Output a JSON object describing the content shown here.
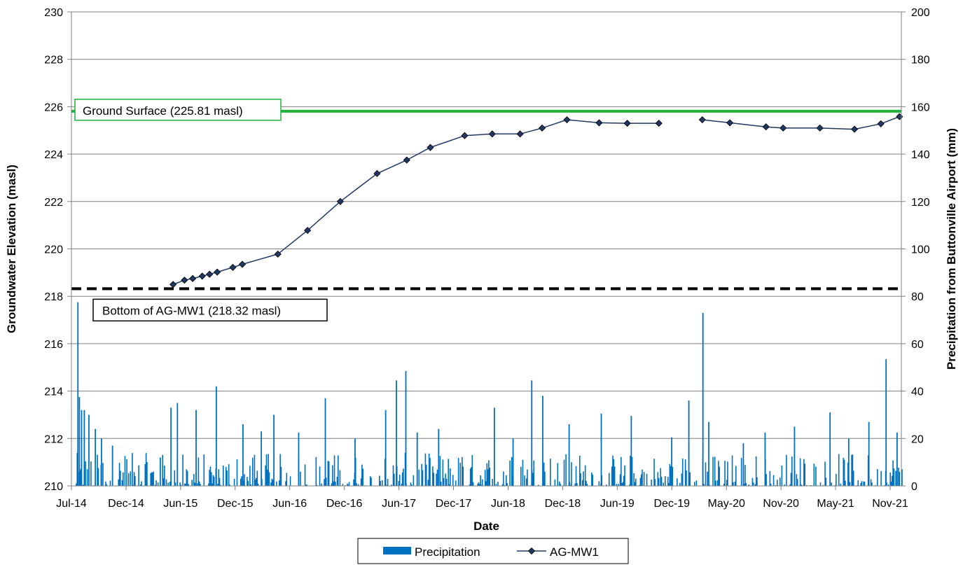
{
  "chart_data": {
    "type": "line",
    "title": "",
    "xlabel": "Date",
    "ylabel_left": "Groundwater Elevation (masl)",
    "ylabel_right": "Precipitation from Buttonville Airport  (mm)",
    "x_ticks": [
      "Jul-14",
      "Dec-14",
      "Jun-15",
      "Dec-15",
      "Jun-16",
      "Dec-16",
      "Jun-17",
      "Dec-17",
      "Jun-18",
      "Dec-18",
      "Jun-19",
      "Dec-19",
      "May-20",
      "Nov-20",
      "May-21",
      "Nov-21"
    ],
    "x_range": [
      "2014-07-01",
      "2021-12-01"
    ],
    "ylim_left": [
      210,
      230
    ],
    "yticks_left": [
      210,
      212,
      214,
      216,
      218,
      220,
      222,
      224,
      226,
      228,
      230
    ],
    "ylim_right": [
      0,
      200
    ],
    "yticks_right": [
      0,
      20,
      40,
      60,
      80,
      100,
      120,
      140,
      160,
      180,
      200
    ],
    "grid": true,
    "legend_position": "bottom",
    "reference_lines": [
      {
        "label": "Ground Surface (225.81 masl)",
        "value": 225.81,
        "color": "#1fb33a",
        "style": "solid"
      },
      {
        "label": "Bottom of AG-MW1 (218.32 masl)",
        "value": 218.32,
        "color": "#000000",
        "style": "dashed"
      }
    ],
    "series": [
      {
        "name": "AG-MW1",
        "kind": "line-marker",
        "axis": "left",
        "color": "#1f3864",
        "points": [
          [
            "2015-05-29",
            218.5
          ],
          [
            "2015-07-05",
            218.68
          ],
          [
            "2015-08-01",
            218.75
          ],
          [
            "2015-09-01",
            218.85
          ],
          [
            "2015-09-25",
            218.93
          ],
          [
            "2015-10-20",
            219.02
          ],
          [
            "2015-12-10",
            219.22
          ],
          [
            "2016-01-10",
            219.35
          ],
          [
            "2016-05-05",
            219.78
          ],
          [
            "2016-08-10",
            220.78
          ],
          [
            "2016-11-25",
            222.0
          ],
          [
            "2017-03-25",
            223.18
          ],
          [
            "2017-06-30",
            223.75
          ],
          [
            "2017-09-15",
            224.28
          ],
          [
            "2018-01-05",
            224.78
          ],
          [
            "2018-04-05",
            224.85
          ],
          [
            "2018-07-05",
            224.85
          ],
          [
            "2018-09-15",
            225.1
          ],
          [
            "2018-12-05",
            225.45
          ],
          [
            "2019-03-20",
            225.32
          ],
          [
            "2019-06-20",
            225.3
          ],
          [
            "2019-10-01",
            225.3
          ],
          [
            "2020-02-20",
            225.45
          ],
          [
            "2020-05-20",
            225.32
          ],
          [
            "2020-09-15",
            225.15
          ],
          [
            "2020-11-10",
            225.1
          ],
          [
            "2021-03-10",
            225.1
          ],
          [
            "2021-07-01",
            225.05
          ],
          [
            "2021-09-25",
            225.28
          ],
          [
            "2021-11-25",
            225.58
          ]
        ]
      },
      {
        "name": "Precipitation",
        "kind": "bar",
        "axis": "right",
        "color": "#0070c0",
        "peaks": [
          [
            "2014-07-20",
            77.5
          ],
          [
            "2014-07-25",
            37.5
          ],
          [
            "2014-08-01",
            32.0
          ],
          [
            "2014-08-10",
            32.0
          ],
          [
            "2014-08-25",
            30.0
          ],
          [
            "2014-09-15",
            24.0
          ],
          [
            "2014-10-05",
            20.0
          ],
          [
            "2014-11-10",
            17.0
          ],
          [
            "2015-04-15",
            12.0
          ],
          [
            "2015-05-20",
            33.0
          ],
          [
            "2015-06-10",
            35.0
          ],
          [
            "2015-08-10",
            32.0
          ],
          [
            "2015-10-15",
            42.0
          ],
          [
            "2016-01-10",
            26.0
          ],
          [
            "2016-03-10",
            23.0
          ],
          [
            "2016-04-20",
            30.0
          ],
          [
            "2016-07-10",
            22.5
          ],
          [
            "2016-10-05",
            37.0
          ],
          [
            "2017-01-10",
            20.0
          ],
          [
            "2017-04-20",
            32.0
          ],
          [
            "2017-05-25",
            44.5
          ],
          [
            "2017-06-25",
            48.5
          ],
          [
            "2017-08-01",
            22.5
          ],
          [
            "2017-10-10",
            24.0
          ],
          [
            "2018-04-10",
            33.0
          ],
          [
            "2018-06-10",
            20.0
          ],
          [
            "2018-08-10",
            44.5
          ],
          [
            "2018-09-15",
            38.0
          ],
          [
            "2018-12-10",
            26.0
          ],
          [
            "2019-03-25",
            30.5
          ],
          [
            "2019-07-01",
            29.5
          ],
          [
            "2019-11-10",
            20.5
          ],
          [
            "2020-01-05",
            36.0
          ],
          [
            "2020-02-20",
            73.0
          ],
          [
            "2020-03-10",
            27.0
          ],
          [
            "2020-07-01",
            18.0
          ],
          [
            "2020-09-10",
            22.5
          ],
          [
            "2020-12-15",
            25.0
          ],
          [
            "2021-04-10",
            31.0
          ],
          [
            "2021-06-10",
            20.0
          ],
          [
            "2021-08-15",
            27.0
          ],
          [
            "2021-10-10",
            53.5
          ],
          [
            "2021-11-15",
            22.5
          ],
          [
            "2021-12-01",
            7.0
          ]
        ]
      }
    ]
  },
  "legend": {
    "items": [
      {
        "label": "Precipitation",
        "color": "#0070c0"
      },
      {
        "label": "AG-MW1",
        "color": "#1f3864"
      }
    ]
  }
}
